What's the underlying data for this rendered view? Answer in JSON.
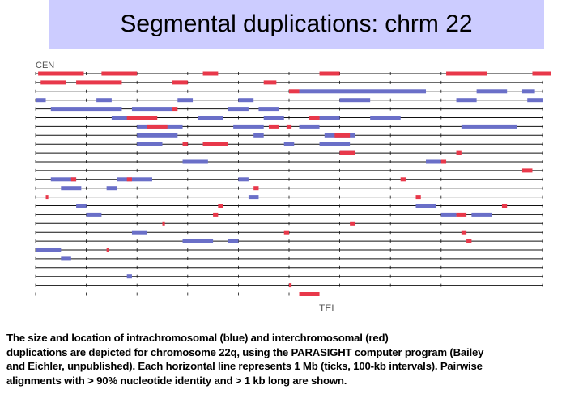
{
  "title": "Segmental duplications: chrm 22",
  "diagram": {
    "start_label": "CEN",
    "end_label": "TEL",
    "colors": {
      "intrachromosomal": "#6a6fc8",
      "interchromosomal": "#e8384a",
      "line": "#111111"
    },
    "rows": [
      {
        "blue": [],
        "red": [
          [
            0.05,
            0.95
          ],
          [
            1.3,
            2.0
          ],
          [
            3.3,
            3.6
          ],
          [
            5.6,
            6.0
          ],
          [
            8.1,
            8.9
          ],
          [
            9.8,
            10.2
          ]
        ]
      },
      {
        "blue": [],
        "red": [
          [
            0.1,
            0.6
          ],
          [
            0.8,
            1.7
          ],
          [
            2.7,
            3.0
          ],
          [
            4.5,
            4.75
          ]
        ]
      },
      {
        "blue": [
          [
            5.2,
            7.7
          ],
          [
            8.7,
            9.3
          ],
          [
            9.6,
            9.85
          ]
        ],
        "red": [
          [
            5.0,
            5.2
          ]
        ]
      },
      {
        "blue": [
          [
            0.0,
            0.2
          ],
          [
            1.2,
            1.5
          ],
          [
            2.8,
            3.1
          ],
          [
            4.0,
            4.3
          ],
          [
            6.0,
            6.6
          ],
          [
            8.3,
            8.7
          ],
          [
            9.7,
            10.0
          ]
        ],
        "red": []
      },
      {
        "blue": [
          [
            0.3,
            1.7
          ],
          [
            1.9,
            2.7
          ],
          [
            3.8,
            4.2
          ],
          [
            4.4,
            4.8
          ]
        ],
        "red": [
          [
            2.7,
            2.8
          ]
        ]
      },
      {
        "blue": [
          [
            1.5,
            2.1
          ],
          [
            3.2,
            3.7
          ],
          [
            4.5,
            4.9
          ],
          [
            5.6,
            6.0
          ],
          [
            6.6,
            7.2
          ]
        ],
        "red": [
          [
            1.8,
            2.4
          ],
          [
            5.4,
            5.6
          ]
        ]
      },
      {
        "blue": [
          [
            2.0,
            2.9
          ],
          [
            3.9,
            4.5
          ],
          [
            5.2,
            5.6
          ],
          [
            8.4,
            9.5
          ]
        ],
        "red": [
          [
            2.2,
            2.6
          ],
          [
            4.6,
            4.8
          ],
          [
            4.95,
            5.05
          ]
        ]
      },
      {
        "blue": [
          [
            2.0,
            2.8
          ],
          [
            4.3,
            4.5
          ],
          [
            5.7,
            6.3
          ]
        ],
        "red": [
          [
            5.9,
            6.2
          ]
        ]
      },
      {
        "blue": [
          [
            2.0,
            2.5
          ],
          [
            3.3,
            3.6
          ],
          [
            4.9,
            5.1
          ],
          [
            5.6,
            6.2
          ]
        ],
        "red": [
          [
            3.3,
            3.8
          ],
          [
            2.9,
            3.0
          ]
        ]
      },
      {
        "blue": [
          [
            6.0,
            6.3
          ]
        ],
        "red": [
          [
            6.0,
            6.3
          ],
          [
            8.3,
            8.4
          ]
        ]
      },
      {
        "blue": [
          [
            2.9,
            3.4
          ],
          [
            7.7,
            8.0
          ]
        ],
        "red": [
          [
            8.0,
            8.1
          ]
        ]
      },
      {
        "blue": [],
        "red": [
          [
            9.6,
            9.8
          ]
        ]
      },
      {
        "blue": [
          [
            0.3,
            0.8
          ],
          [
            1.6,
            2.3
          ],
          [
            4.0,
            4.2
          ]
        ],
        "red": [
          [
            0.7,
            0.8
          ],
          [
            1.8,
            1.9
          ],
          [
            7.2,
            7.3
          ]
        ]
      },
      {
        "blue": [
          [
            0.5,
            0.9
          ],
          [
            1.4,
            1.6
          ]
        ],
        "red": [
          [
            4.3,
            4.4
          ]
        ]
      },
      {
        "blue": [
          [
            4.2,
            4.4
          ]
        ],
        "red": [
          [
            0.2,
            0.25
          ],
          [
            7.5,
            7.6
          ]
        ]
      },
      {
        "blue": [
          [
            0.8,
            1.0
          ],
          [
            7.5,
            7.9
          ]
        ],
        "red": [
          [
            3.6,
            3.7
          ],
          [
            9.2,
            9.3
          ]
        ]
      },
      {
        "blue": [
          [
            1.0,
            1.3
          ],
          [
            8.0,
            8.3
          ],
          [
            8.6,
            9.0
          ]
        ],
        "red": [
          [
            3.5,
            3.6
          ],
          [
            8.3,
            8.5
          ]
        ]
      },
      {
        "blue": [],
        "red": [
          [
            2.5,
            2.55
          ],
          [
            6.2,
            6.3
          ]
        ]
      },
      {
        "blue": [
          [
            1.9,
            2.2
          ]
        ],
        "red": [
          [
            4.9,
            5.0
          ],
          [
            8.4,
            8.5
          ]
        ]
      },
      {
        "blue": [
          [
            2.9,
            3.5
          ],
          [
            3.8,
            4.0
          ]
        ],
        "red": [
          [
            8.5,
            8.6
          ]
        ]
      },
      {
        "blue": [
          [
            0.0,
            0.5
          ],
          [
            0.0,
            0.4
          ]
        ],
        "red": [
          [
            1.4,
            1.45
          ]
        ]
      },
      {
        "blue": [
          [
            0.5,
            0.7
          ]
        ],
        "red": []
      },
      {
        "blue": [],
        "red": []
      },
      {
        "blue": [
          [
            1.8,
            1.9
          ]
        ],
        "red": []
      },
      {
        "blue": [],
        "red": [
          [
            5.0,
            5.05
          ]
        ]
      },
      {
        "blue": [],
        "red": [
          [
            5.2,
            5.6
          ]
        ]
      }
    ]
  },
  "caption": {
    "line1": "The size and location of intrachromosomal (blue) and interchromosomal (red)",
    "line2": "duplications are depicted for chromosome 22q, using the PARASIGHT computer program (Bailey",
    "line3": "and Eichler, unpublished). Each horizontal line represents 1 Mb (ticks, 100-kb intervals). Pairwise",
    "line4": "alignments with > 90% nucleotide identity and > 1 kb long are shown."
  }
}
